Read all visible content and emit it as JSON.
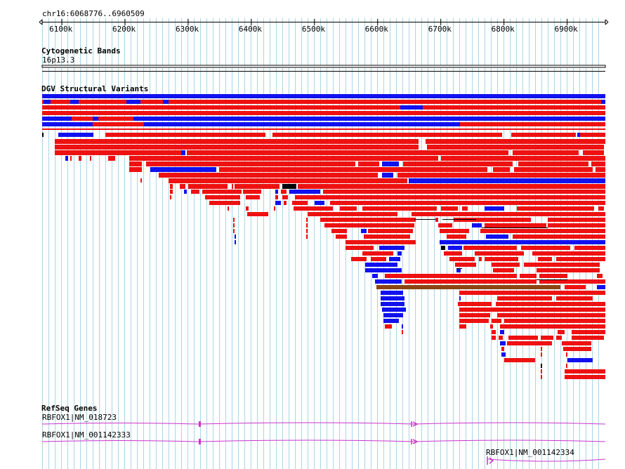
{
  "location": "chr16:6068776..6960509",
  "ruler": {
    "start_bp": 6068776,
    "end_bp": 6960509,
    "ticks": [
      "6100k",
      "6200k",
      "6300k",
      "6400k",
      "6500k",
      "6600k",
      "6700k",
      "6800k",
      "6900k"
    ]
  },
  "tracks": {
    "cytoband": {
      "title": "Cytogenetic Bands",
      "band": "16p13.3"
    },
    "dgv": {
      "title": "DGV Structural Variants"
    },
    "refseq": {
      "title": "RefSeq Genes",
      "genes": [
        {
          "label": "RBFOX1|NM_018723"
        },
        {
          "label": "RBFOX1|NM_001142333"
        },
        {
          "label": "RBFOX1|NM_001142334"
        }
      ]
    }
  },
  "colors": {
    "loss": "#ee1111",
    "gain": "#1111ee",
    "complex": "#8b4513",
    "gene": "#cc33cc",
    "grid": "#a9d6e5",
    "ruler": "#000000"
  }
}
